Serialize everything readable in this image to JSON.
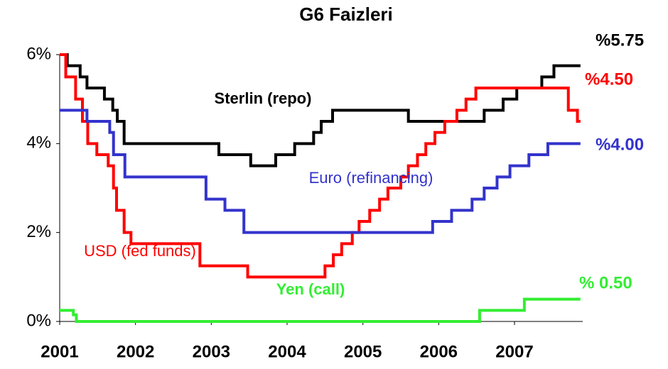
{
  "chart_data": {
    "type": "line",
    "step": "post",
    "title": "G6 Faizleri",
    "xlim": [
      2001,
      2007.9
    ],
    "xticks": [
      2001,
      2002,
      2003,
      2004,
      2005,
      2006,
      2007
    ],
    "ylim": [
      0,
      6
    ],
    "yticks": [
      {
        "value": 0,
        "label": "0%"
      },
      {
        "value": 2,
        "label": "2%"
      },
      {
        "value": 4,
        "label": "4%"
      },
      {
        "value": 6,
        "label": "6%"
      }
    ],
    "grid": false,
    "series": [
      {
        "name": "Sterlin (repo)",
        "color": "#000000",
        "end_label": "%5.75",
        "x": [
          2001,
          2001.1,
          2001.27,
          2001.36,
          2001.59,
          2001.7,
          2001.76,
          2001.85,
          2003.1,
          2003.52,
          2003.85,
          2004.1,
          2004.35,
          2004.45,
          2004.6,
          2005.6,
          2006.6,
          2006.85,
          2007.03,
          2007.36,
          2007.52,
          2007.87
        ],
        "values": [
          6.0,
          5.75,
          5.5,
          5.25,
          5.0,
          4.75,
          4.5,
          4.0,
          3.75,
          3.5,
          3.75,
          4.0,
          4.25,
          4.5,
          4.75,
          4.5,
          4.75,
          5.0,
          5.25,
          5.5,
          5.75,
          5.75
        ]
      },
      {
        "name": "USD (fed funds)",
        "color": "#ff0000",
        "end_label": "%4.50",
        "x": [
          2001,
          2001.08,
          2001.21,
          2001.3,
          2001.37,
          2001.49,
          2001.64,
          2001.71,
          2001.75,
          2001.85,
          2001.94,
          2002.85,
          2003.48,
          2004.5,
          2004.61,
          2004.72,
          2004.86,
          2004.95,
          2005.09,
          2005.22,
          2005.33,
          2005.5,
          2005.6,
          2005.72,
          2005.83,
          2005.95,
          2006.08,
          2006.24,
          2006.36,
          2006.49,
          2007.71,
          2007.83,
          2007.87
        ],
        "values": [
          6.0,
          5.5,
          5.0,
          4.5,
          4.0,
          3.75,
          3.5,
          3.0,
          2.5,
          2.0,
          1.75,
          1.25,
          1.0,
          1.25,
          1.5,
          1.75,
          2.0,
          2.25,
          2.5,
          2.75,
          3.0,
          3.25,
          3.5,
          3.75,
          4.0,
          4.25,
          4.5,
          4.75,
          5.0,
          5.25,
          4.75,
          4.5,
          4.5
        ]
      },
      {
        "name": "Euro (refinancing)",
        "color": "#3333cc",
        "end_label": "%4.00",
        "x": [
          2001,
          2001.36,
          2001.66,
          2001.71,
          2001.86,
          2002.93,
          2003.18,
          2003.43,
          2005.92,
          2006.17,
          2006.44,
          2006.6,
          2006.77,
          2006.94,
          2007.19,
          2007.44,
          2007.87
        ],
        "values": [
          4.75,
          4.5,
          4.25,
          3.75,
          3.25,
          2.75,
          2.5,
          2.0,
          2.25,
          2.5,
          2.75,
          3.0,
          3.25,
          3.5,
          3.75,
          4.0,
          4.0
        ]
      },
      {
        "name": "Yen (call)",
        "color": "#33ee33",
        "end_label": "% 0.50",
        "x": [
          2001,
          2001.18,
          2001.22,
          2006.54,
          2007.13,
          2007.87
        ],
        "values": [
          0.25,
          0.15,
          0.0,
          0.25,
          0.5,
          0.5
        ]
      }
    ]
  }
}
